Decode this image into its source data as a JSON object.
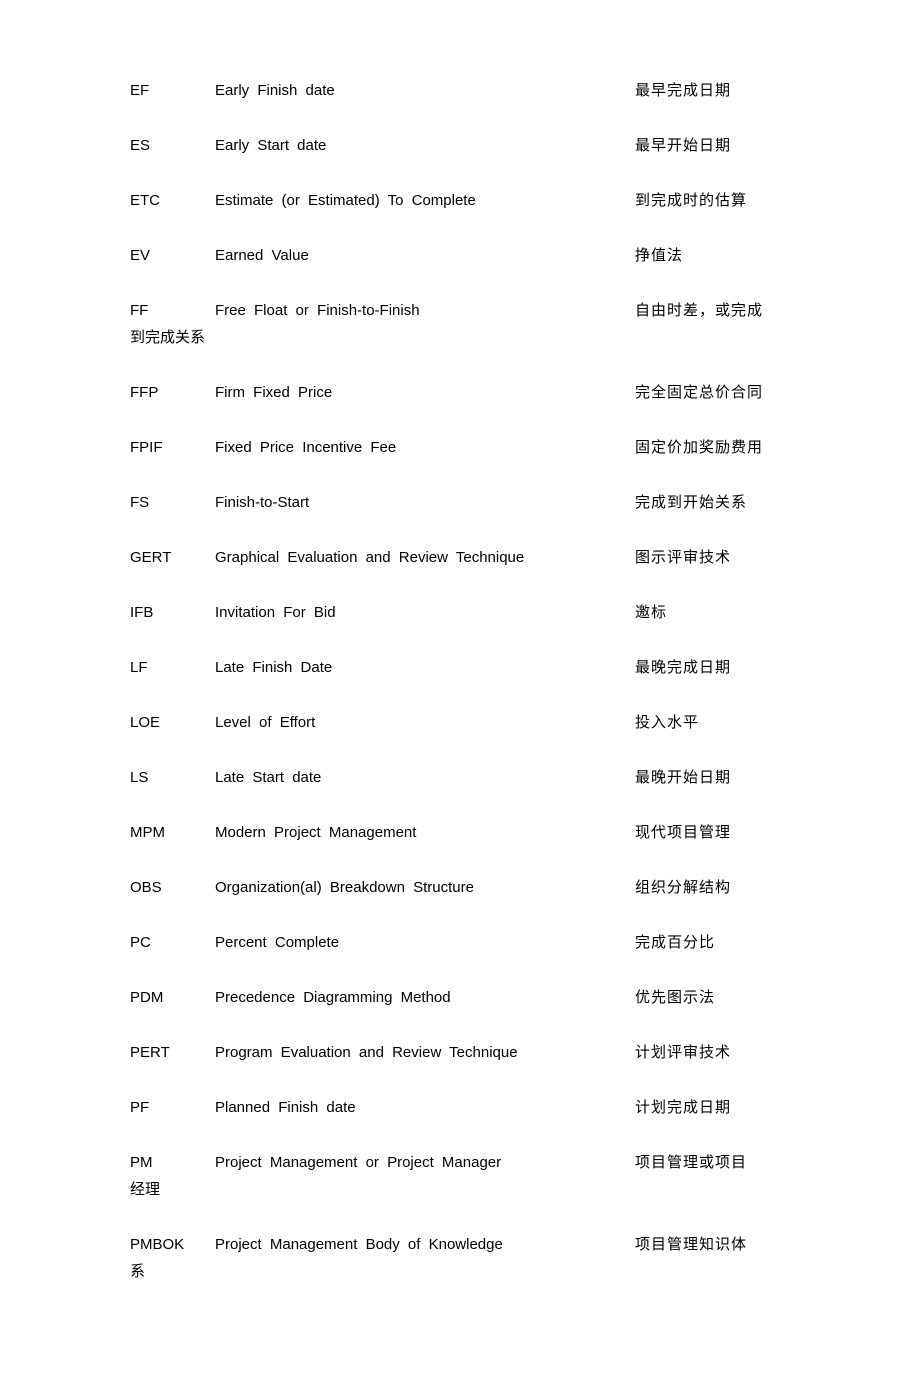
{
  "rows": [
    {
      "abbr": "EF",
      "full": "Early Finish date",
      "chinese": "最早完成日期"
    },
    {
      "abbr": "ES",
      "full": "Early Start date",
      "chinese": "最早开始日期"
    },
    {
      "abbr": "ETC",
      "full": "Estimate (or Estimated) To Complete",
      "chinese": "到完成时的估算"
    },
    {
      "abbr": "EV",
      "full": "Earned Value",
      "chinese": "挣值法"
    },
    {
      "abbr": "FF",
      "full": "Free Float or Finish-to-Finish",
      "chinese": "自由时差，或完成",
      "wrap": "到完成关系"
    },
    {
      "abbr": "FFP",
      "full": "Firm Fixed Price",
      "chinese": "完全固定总价合同"
    },
    {
      "abbr": "FPIF",
      "full": "Fixed Price Incentive Fee",
      "chinese": "固定价加奖励费用"
    },
    {
      "abbr": "FS",
      "full": "Finish-to-Start",
      "chinese": "完成到开始关系"
    },
    {
      "abbr": "GERT",
      "full": "Graphical Evaluation and Review Technique",
      "chinese": "图示评审技术"
    },
    {
      "abbr": "IFB",
      "full": "Invitation For Bid",
      "chinese": "邀标"
    },
    {
      "abbr": "LF",
      "full": "Late Finish Date",
      "chinese": "最晚完成日期"
    },
    {
      "abbr": "LOE",
      "full": "Level of Effort",
      "chinese": "投入水平"
    },
    {
      "abbr": "LS",
      "full": "Late Start date",
      "chinese": "最晚开始日期"
    },
    {
      "abbr": "MPM",
      "full": "Modern Project Management",
      "chinese": "现代项目管理"
    },
    {
      "abbr": "OBS",
      "full": "Organization(al) Breakdown Structure",
      "chinese": "组织分解结构"
    },
    {
      "abbr": "PC",
      "full": "Percent Complete",
      "chinese": "完成百分比"
    },
    {
      "abbr": "PDM",
      "full": "Precedence Diagramming Method",
      "chinese": "优先图示法"
    },
    {
      "abbr": "PERT",
      "full": "Program Evaluation and Review Technique",
      "chinese": "计划评审技术"
    },
    {
      "abbr": "PF",
      "full": "Planned Finish date",
      "chinese": "计划完成日期"
    },
    {
      "abbr": "PM",
      "full": "Project Management or Project Manager",
      "chinese": "项目管理或项目",
      "wrap": "经理"
    },
    {
      "abbr": "PMBOK",
      "full": "Project Management Body of Knowledge",
      "chinese": "项目管理知识体",
      "wrap": "系"
    }
  ]
}
